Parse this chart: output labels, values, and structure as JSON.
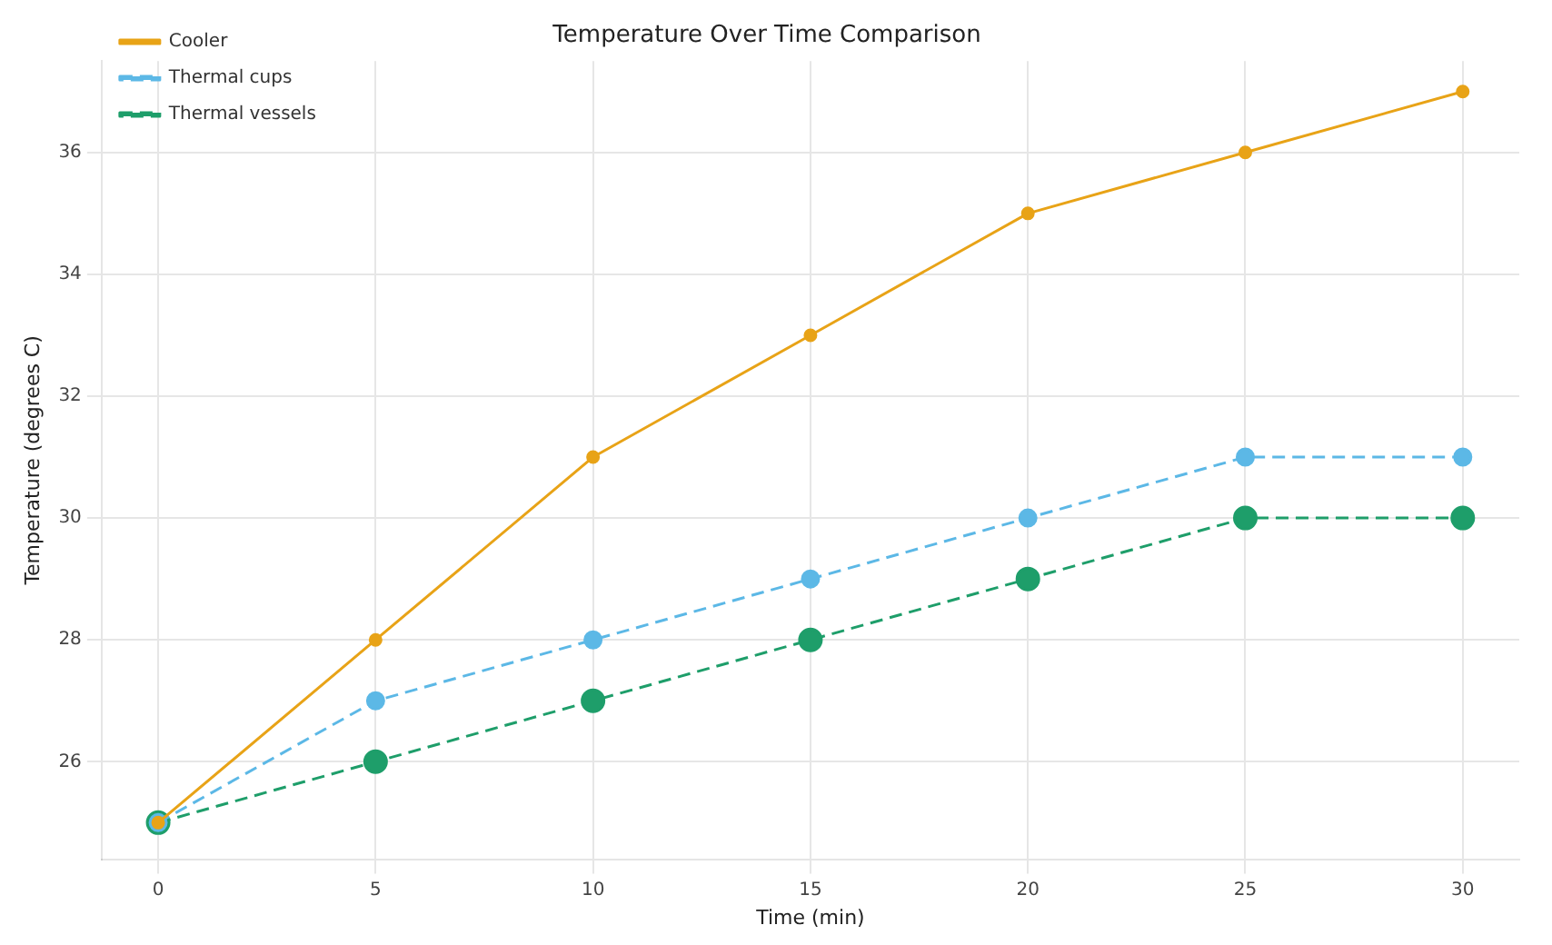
{
  "chart_data": {
    "type": "line",
    "title": "Temperature Over Time Comparison",
    "xlabel": "Time (min)",
    "ylabel": "Temperature (degrees C)",
    "x": [
      0,
      5,
      10,
      15,
      20,
      25,
      30
    ],
    "series": [
      {
        "name": "Cooler",
        "color": "#e8a317",
        "values": [
          25,
          28,
          31,
          33,
          35,
          36,
          37
        ],
        "line_style": "solid"
      },
      {
        "name": "Thermal cups",
        "color": "#5cb8e6",
        "values": [
          25,
          27,
          28,
          29,
          30,
          31,
          31
        ],
        "line_style": "dashed"
      },
      {
        "name": "Thermal vessels",
        "color": "#1e9e6a",
        "values": [
          25,
          26,
          27,
          28,
          29,
          30,
          30
        ],
        "line_style": "dashed"
      }
    ],
    "xlim": [
      -1.3,
      31.3
    ],
    "xticks": [
      0,
      5,
      10,
      15,
      20,
      25,
      30
    ],
    "ylim": [
      24.4,
      37.5
    ],
    "yticks": [
      26,
      28,
      30,
      32,
      34,
      36
    ],
    "grid": true,
    "legend": "top left",
    "marker": "circle"
  }
}
